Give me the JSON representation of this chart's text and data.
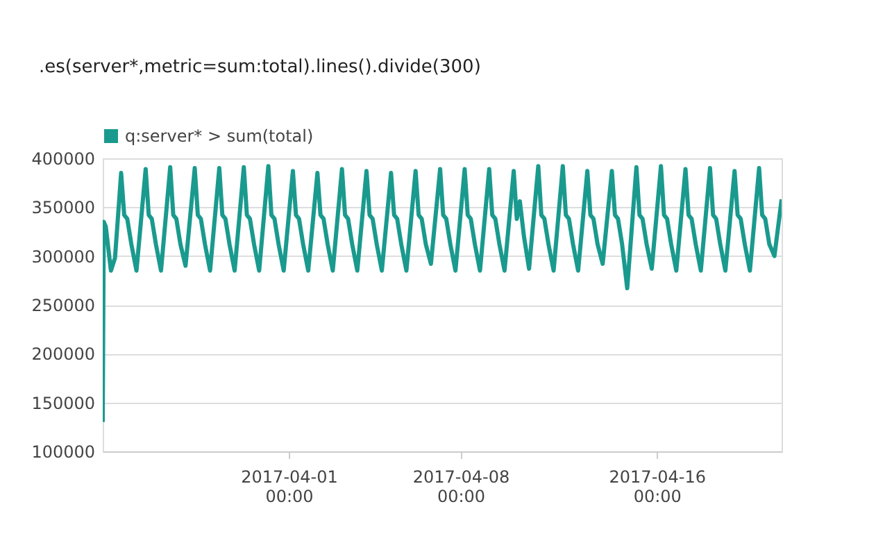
{
  "chart_data": {
    "type": "line",
    "annotations": [
      ".es(server*,metric=sum:total).lines().divide(300)"
    ],
    "x": [
      "2017-03-24T10:00",
      "2017-03-24T11:00",
      "2017-03-24T13:00",
      "2017-03-24T18:00",
      "2017-03-24T22:00",
      "2017-03-25T04:00",
      "2017-03-25T07:00",
      "2017-03-25T10:00",
      "2017-03-25T14:00",
      "2017-03-25T19:00",
      "2017-03-26T04:00",
      "2017-03-26T07:00",
      "2017-03-26T10:00",
      "2017-03-26T14:00",
      "2017-03-26T19:00",
      "2017-03-27T04:00",
      "2017-03-27T07:00",
      "2017-03-27T10:00",
      "2017-03-27T14:00",
      "2017-03-27T19:00",
      "2017-03-28T04:00",
      "2017-03-28T07:00",
      "2017-03-28T10:00",
      "2017-03-28T14:00",
      "2017-03-28T19:00",
      "2017-03-29T04:00",
      "2017-03-29T07:00",
      "2017-03-29T10:00",
      "2017-03-29T14:00",
      "2017-03-29T19:00",
      "2017-03-30T04:00",
      "2017-03-30T07:00",
      "2017-03-30T10:00",
      "2017-03-30T14:00",
      "2017-03-30T19:00",
      "2017-03-31T04:00",
      "2017-03-31T07:00",
      "2017-03-31T10:00",
      "2017-03-31T14:00",
      "2017-03-31T19:00",
      "2017-04-01T04:00",
      "2017-04-01T07:00",
      "2017-04-01T10:00",
      "2017-04-01T14:00",
      "2017-04-01T19:00",
      "2017-04-02T04:00",
      "2017-04-02T07:00",
      "2017-04-02T10:00",
      "2017-04-02T14:00",
      "2017-04-02T19:00",
      "2017-04-03T04:00",
      "2017-04-03T07:00",
      "2017-04-03T10:00",
      "2017-04-03T14:00",
      "2017-04-03T19:00",
      "2017-04-04T04:00",
      "2017-04-04T07:00",
      "2017-04-04T10:00",
      "2017-04-04T14:00",
      "2017-04-04T19:00",
      "2017-04-05T04:00",
      "2017-04-05T07:00",
      "2017-04-05T10:00",
      "2017-04-05T14:00",
      "2017-04-05T19:00",
      "2017-04-06T04:00",
      "2017-04-06T07:00",
      "2017-04-06T10:00",
      "2017-04-06T14:00",
      "2017-04-06T19:00",
      "2017-04-07T04:00",
      "2017-04-07T07:00",
      "2017-04-07T10:00",
      "2017-04-07T14:00",
      "2017-04-07T19:00",
      "2017-04-08T04:00",
      "2017-04-08T07:00",
      "2017-04-08T10:00",
      "2017-04-08T14:00",
      "2017-04-08T19:00",
      "2017-04-09T04:00",
      "2017-04-09T07:00",
      "2017-04-09T10:00",
      "2017-04-09T14:00",
      "2017-04-09T19:00",
      "2017-04-10T04:00",
      "2017-04-10T07:00",
      "2017-04-10T10:00",
      "2017-04-10T14:00",
      "2017-04-10T19:00",
      "2017-04-11T04:00",
      "2017-04-11T07:00",
      "2017-04-11T10:00",
      "2017-04-11T14:00",
      "2017-04-11T19:00",
      "2017-04-12T04:00",
      "2017-04-12T07:00",
      "2017-04-12T10:00",
      "2017-04-12T14:00",
      "2017-04-12T19:00",
      "2017-04-13T04:00",
      "2017-04-13T07:00",
      "2017-04-13T10:00",
      "2017-04-13T14:00",
      "2017-04-13T19:00",
      "2017-04-14T04:00",
      "2017-04-14T07:00",
      "2017-04-14T10:00",
      "2017-04-14T14:00",
      "2017-04-14T19:00",
      "2017-04-15T04:00",
      "2017-04-15T07:00",
      "2017-04-15T10:00",
      "2017-04-15T14:00",
      "2017-04-15T19:00",
      "2017-04-16T04:00",
      "2017-04-16T07:00",
      "2017-04-16T10:00",
      "2017-04-16T14:00",
      "2017-04-16T19:00",
      "2017-04-17T04:00",
      "2017-04-17T07:00",
      "2017-04-17T10:00",
      "2017-04-17T14:00",
      "2017-04-17T19:00",
      "2017-04-18T04:00",
      "2017-04-18T07:00",
      "2017-04-18T10:00",
      "2017-04-18T14:00",
      "2017-04-18T19:00",
      "2017-04-19T04:00",
      "2017-04-19T07:00",
      "2017-04-19T10:00",
      "2017-04-19T14:00",
      "2017-04-19T19:00",
      "2017-04-20T04:00",
      "2017-04-20T07:00",
      "2017-04-20T10:00",
      "2017-04-20T14:00",
      "2017-04-20T19:00",
      "2017-04-21T02:00"
    ],
    "series": [
      {
        "name": "q:server* > sum(total)",
        "color": "#1a9a8e",
        "values": [
          130000,
          335000,
          330000,
          285000,
          298000,
          385000,
          342000,
          338000,
          312000,
          285000,
          389000,
          342000,
          338000,
          312000,
          285000,
          391000,
          342000,
          338000,
          312000,
          290000,
          390000,
          342000,
          338000,
          312000,
          285000,
          390000,
          342000,
          338000,
          312000,
          285000,
          391000,
          342000,
          338000,
          312000,
          285000,
          392000,
          342000,
          338000,
          312000,
          285000,
          387000,
          342000,
          338000,
          312000,
          285000,
          385000,
          342000,
          338000,
          312000,
          285000,
          389000,
          342000,
          338000,
          312000,
          285000,
          387000,
          342000,
          338000,
          312000,
          285000,
          385000,
          342000,
          338000,
          312000,
          285000,
          387000,
          342000,
          338000,
          312000,
          292000,
          389000,
          342000,
          338000,
          312000,
          285000,
          389000,
          342000,
          338000,
          312000,
          285000,
          389000,
          342000,
          338000,
          312000,
          285000,
          387000,
          338000,
          356000,
          320000,
          287000,
          392000,
          342000,
          338000,
          312000,
          285000,
          392000,
          342000,
          338000,
          312000,
          285000,
          387000,
          342000,
          338000,
          312000,
          292000,
          387000,
          342000,
          338000,
          312000,
          267000,
          391000,
          342000,
          338000,
          312000,
          287000,
          392000,
          342000,
          338000,
          312000,
          285000,
          389000,
          342000,
          338000,
          312000,
          285000,
          390000,
          342000,
          338000,
          312000,
          285000,
          387000,
          342000,
          338000,
          312000,
          285000,
          390000,
          342000,
          338000,
          312000,
          300000,
          358000
        ]
      }
    ],
    "xlim": [
      "2017-03-24T10:00",
      "2017-04-21T02:00"
    ],
    "xticks": [
      {
        "value": "2017-04-01",
        "label": "2017-04-01 00:00"
      },
      {
        "value": "2017-04-08",
        "label": "2017-04-08 00:00"
      },
      {
        "value": "2017-04-16",
        "label": "2017-04-16 00:00"
      }
    ],
    "ylim": [
      100000,
      400000
    ],
    "yticks": [
      100000,
      150000,
      200000,
      250000,
      300000,
      350000,
      400000
    ],
    "grid": "y",
    "legend": "top left",
    "marker": "none",
    "line_style": "solid"
  }
}
